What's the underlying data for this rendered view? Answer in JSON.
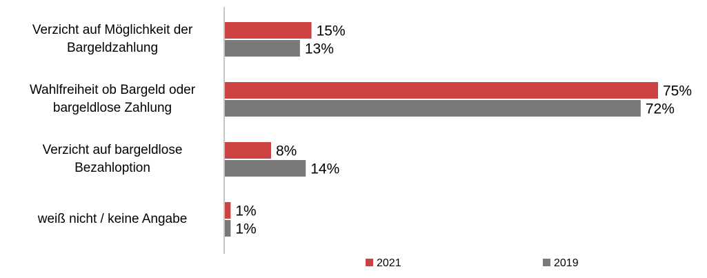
{
  "chart_data": {
    "type": "bar",
    "orientation": "horizontal",
    "categories": [
      "Verzicht auf Möglichkeit der\nBargeldzahlung",
      "Wahlfreiheit ob Bargeld oder\nbargeldlose Zahlung",
      "Verzicht auf bargeldlose\nBezahloption",
      "weiß nicht / keine Angabe"
    ],
    "series": [
      {
        "name": "2021",
        "color": "#cc4142",
        "values": [
          15,
          75,
          8,
          1
        ],
        "value_labels": [
          "15%",
          "75%",
          "8%",
          "1%"
        ]
      },
      {
        "name": "2019",
        "color": "#7a797a",
        "values": [
          13,
          72,
          14,
          1
        ],
        "value_labels": [
          "13%",
          "72%",
          "14%",
          "1%"
        ]
      }
    ],
    "legend": "bottom"
  }
}
